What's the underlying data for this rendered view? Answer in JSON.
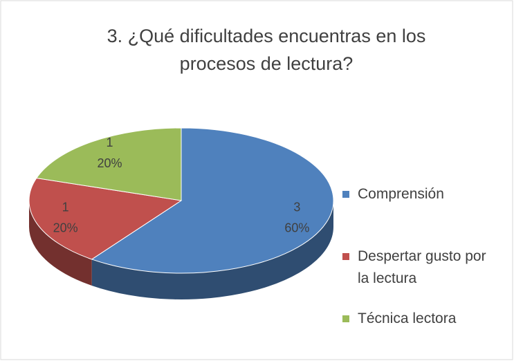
{
  "chart_data": {
    "type": "pie3d",
    "title": "3. ¿Qué dificultades encuentras en los procesos de lectura?",
    "categories": [
      "Comprensión",
      "Despertar gusto por la lectura",
      "Técnica lectora"
    ],
    "values": [
      3,
      1,
      1
    ],
    "percentages": [
      {
        "value": 60,
        "label": "60%"
      },
      {
        "value": 20,
        "label": "20%"
      },
      {
        "value": 20,
        "label": "20%"
      }
    ],
    "colors": [
      "#4f81bd",
      "#c0504d",
      "#9bbb59"
    ],
    "legend": "right"
  }
}
